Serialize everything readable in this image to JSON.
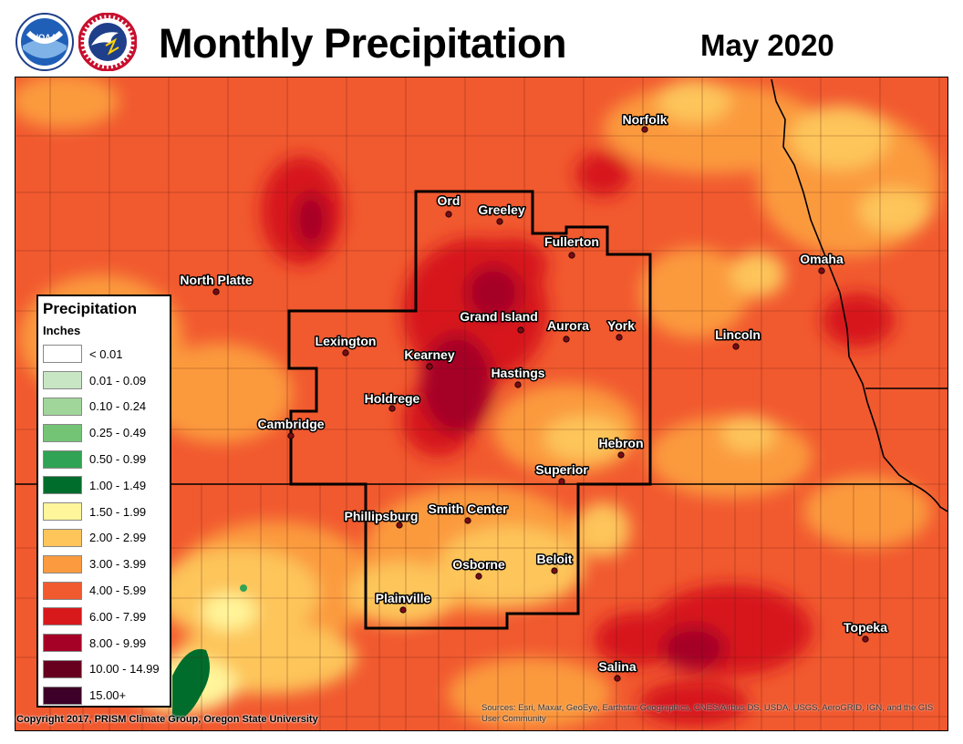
{
  "header": {
    "title": "Monthly Precipitation",
    "date": "May 2020",
    "logos": [
      "noaa-logo",
      "nws-logo"
    ]
  },
  "legend": {
    "title": "Precipitation",
    "units": "Inches",
    "items": [
      {
        "label": "< 0.01",
        "color": "#ffffff"
      },
      {
        "label": "0.01 - 0.09",
        "color": "#c8e6c4"
      },
      {
        "label": "0.10 - 0.24",
        "color": "#a1d69b"
      },
      {
        "label": "0.25 - 0.49",
        "color": "#74c476"
      },
      {
        "label": "0.50 - 0.99",
        "color": "#31a354"
      },
      {
        "label": "1.00 - 1.49",
        "color": "#006d2c"
      },
      {
        "label": "1.50 - 1.99",
        "color": "#fff59a"
      },
      {
        "label": "2.00 - 2.99",
        "color": "#fdc55a"
      },
      {
        "label": "3.00 - 3.99",
        "color": "#fb9a3e"
      },
      {
        "label": "4.00 - 5.99",
        "color": "#f1592f"
      },
      {
        "label": "6.00 - 7.99",
        "color": "#d7191c"
      },
      {
        "label": "8.00 - 9.99",
        "color": "#a50026"
      },
      {
        "label": "10.00 - 14.99",
        "color": "#67001f"
      },
      {
        "label": "15.00+",
        "color": "#3d0028"
      }
    ]
  },
  "cities": [
    {
      "name": "Norfolk"
    },
    {
      "name": "Ord"
    },
    {
      "name": "Greeley"
    },
    {
      "name": "Fullerton"
    },
    {
      "name": "North Platte"
    },
    {
      "name": "Omaha"
    },
    {
      "name": "Grand Island"
    },
    {
      "name": "Aurora"
    },
    {
      "name": "York"
    },
    {
      "name": "Lexington"
    },
    {
      "name": "Lincoln"
    },
    {
      "name": "Kearney"
    },
    {
      "name": "Hastings"
    },
    {
      "name": "Holdrege"
    },
    {
      "name": "Cambridge"
    },
    {
      "name": "Hebron"
    },
    {
      "name": "Superior"
    },
    {
      "name": "Phillipsburg"
    },
    {
      "name": "Smith Center"
    },
    {
      "name": "Beloit"
    },
    {
      "name": "Osborne"
    },
    {
      "name": "Plainville"
    },
    {
      "name": "Topeka"
    },
    {
      "name": "Salina"
    }
  ],
  "footer": {
    "credit": "Copyright 2017, PRISM Climate Group, Oregon State University",
    "sources": "Sources: Esri, Maxar, GeoEye, Earthstar Geographics, CNES/Airbus DS, USDA, USGS, AeroGRID, IGN, and the GIS User Community"
  }
}
